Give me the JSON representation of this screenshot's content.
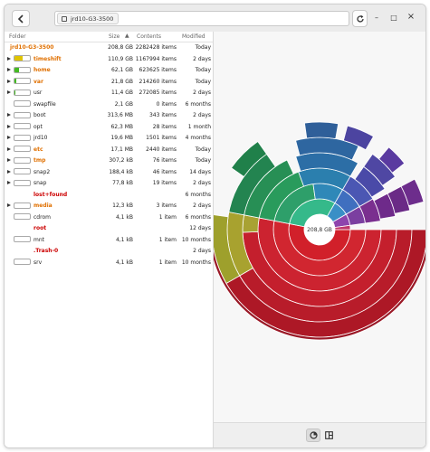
{
  "window": {
    "location": "jrd10-G3-3500",
    "back_icon": "chevron-left-icon",
    "refresh_icon": "refresh-icon",
    "minimize_glyph": "–",
    "maximize_glyph": "□",
    "close_glyph": "×"
  },
  "columns": {
    "folder": "Folder",
    "size": "Size",
    "contents": "Contents",
    "modified": "Modified"
  },
  "root_row": {
    "name": "jrd10-G3-3500",
    "size": "208,8 GB",
    "contents": "2282428 items",
    "modified": "Today",
    "color": "#e07000"
  },
  "rows": [
    {
      "name": "timeshift",
      "size": "110,9 GB",
      "contents": "1167994 items",
      "modified": "2 days",
      "expandable": true,
      "color": "#e07000",
      "bar_color": "#e0c400",
      "fill": 0.53
    },
    {
      "name": "home",
      "size": "62,1 GB",
      "contents": "623625 items",
      "modified": "Today",
      "expandable": true,
      "color": "#e07000",
      "bar_color": "#44bb22",
      "fill": 0.3
    },
    {
      "name": "var",
      "size": "21,8 GB",
      "contents": "214260 items",
      "modified": "Today",
      "expandable": true,
      "color": "#e07000",
      "bar_color": "#44bb22",
      "fill": 0.1
    },
    {
      "name": "usr",
      "size": "11,4 GB",
      "contents": "272085 items",
      "modified": "2 days",
      "expandable": true,
      "color": "#222222",
      "bar_color": "#44bb22",
      "fill": 0.05
    },
    {
      "name": "swapfile",
      "size": "2,1 GB",
      "contents": "0 items",
      "modified": "6 months",
      "expandable": false,
      "color": "#222222",
      "bar_color": "#44bb22",
      "fill": 0.0
    },
    {
      "name": "boot",
      "size": "313,6 MB",
      "contents": "343 items",
      "modified": "2 days",
      "expandable": true,
      "color": "#222222",
      "bar_color": "#44bb22",
      "fill": 0.0
    },
    {
      "name": "opt",
      "size": "62,3 MB",
      "contents": "28 items",
      "modified": "1 month",
      "expandable": true,
      "color": "#222222",
      "bar_color": "#44bb22",
      "fill": 0.0
    },
    {
      "name": "jrd10",
      "size": "19,6 MB",
      "contents": "1501 items",
      "modified": "4 months",
      "expandable": true,
      "color": "#222222",
      "bar_color": "#44bb22",
      "fill": 0.0
    },
    {
      "name": "etc",
      "size": "17,1 MB",
      "contents": "2440 items",
      "modified": "Today",
      "expandable": true,
      "color": "#e07000",
      "bar_color": "#44bb22",
      "fill": 0.0
    },
    {
      "name": "tmp",
      "size": "307,2 kB",
      "contents": "76 items",
      "modified": "Today",
      "expandable": true,
      "color": "#e07000",
      "bar_color": "#44bb22",
      "fill": 0.0
    },
    {
      "name": "snap2",
      "size": "188,4 kB",
      "contents": "46 items",
      "modified": "14 days",
      "expandable": true,
      "color": "#222222",
      "bar_color": "#44bb22",
      "fill": 0.0
    },
    {
      "name": "snap",
      "size": "77,8 kB",
      "contents": "19 items",
      "modified": "2 days",
      "expandable": true,
      "color": "#222222",
      "bar_color": "#44bb22",
      "fill": 0.0
    },
    {
      "name": "lost+found",
      "size": "",
      "contents": "",
      "modified": "6 months",
      "expandable": false,
      "color": "#cc0000",
      "bar_color": "",
      "fill": 0.0
    },
    {
      "name": "media",
      "size": "12,3 kB",
      "contents": "3 items",
      "modified": "2 days",
      "expandable": true,
      "color": "#e07000",
      "bar_color": "#44bb22",
      "fill": 0.0
    },
    {
      "name": "cdrom",
      "size": "4,1 kB",
      "contents": "1 item",
      "modified": "6 months",
      "expandable": false,
      "color": "#222222",
      "bar_color": "#44bb22",
      "fill": 0.0
    },
    {
      "name": "root",
      "size": "",
      "contents": "",
      "modified": "12 days",
      "expandable": false,
      "color": "#cc0000",
      "bar_color": "",
      "fill": 0.0
    },
    {
      "name": "mnt",
      "size": "4,1 kB",
      "contents": "1 item",
      "modified": "10 months",
      "expandable": false,
      "color": "#222222",
      "bar_color": "#44bb22",
      "fill": 0.0
    },
    {
      "name": ".Trash-0",
      "size": "",
      "contents": "",
      "modified": "2 days",
      "expandable": false,
      "color": "#cc0000",
      "bar_color": "",
      "fill": 0.0
    },
    {
      "name": "srv",
      "size": "4,1 kB",
      "contents": "1 item",
      "modified": "10 months",
      "expandable": false,
      "color": "#222222",
      "bar_color": "#44bb22",
      "fill": 0.0
    }
  ],
  "chart": {
    "center_label": "208,8 GB"
  },
  "footer": {
    "rings_icon": "rings-chart-icon",
    "treemap_icon": "treemap-chart-icon"
  }
}
